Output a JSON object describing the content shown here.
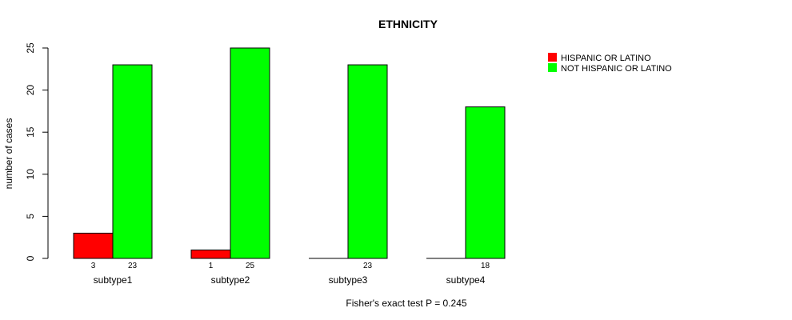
{
  "chart_data": {
    "type": "bar",
    "title": "ETHNICITY",
    "xlabel": "",
    "ylabel": "number of cases",
    "footnote": "Fisher's exact test P = 0.245",
    "categories": [
      "subtype1",
      "subtype2",
      "subtype3",
      "subtype4"
    ],
    "series": [
      {
        "name": "HISPANIC OR LATINO",
        "color": "#ff0000",
        "values": [
          3,
          1,
          0,
          0
        ]
      },
      {
        "name": "NOT HISPANIC OR LATINO",
        "color": "#00ff00",
        "values": [
          23,
          25,
          23,
          18
        ]
      }
    ],
    "data_labels": [
      [
        "3",
        "1",
        "",
        ""
      ],
      [
        "23",
        "25",
        "23",
        "18"
      ]
    ],
    "ylim": [
      0,
      25
    ],
    "yticks": [
      0,
      5,
      10,
      15,
      20,
      25
    ],
    "grid": false,
    "legend": "top-right"
  }
}
